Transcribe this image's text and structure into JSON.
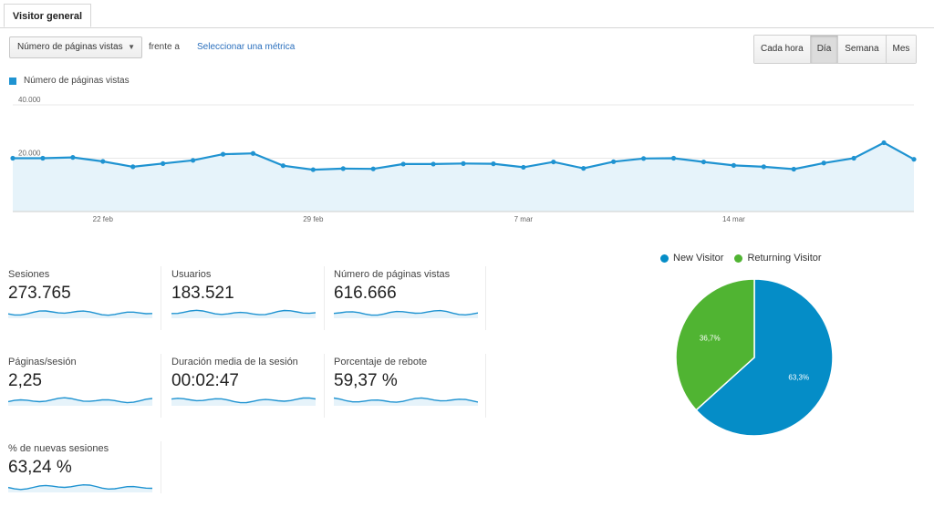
{
  "tabs": [
    {
      "label": "Visitor general",
      "active": true
    }
  ],
  "controls": {
    "metric_select": "Número de páginas vistas",
    "vs_label": "frente a",
    "compare_link": "Seleccionar una métrica",
    "periods": [
      "Cada hora",
      "Día",
      "Semana",
      "Mes"
    ],
    "active_period": "Día"
  },
  "chart_legend": "Número de páginas vistas",
  "chart_data": [
    {
      "type": "area",
      "title": "",
      "xlabel": "",
      "ylabel": "",
      "series": [
        {
          "name": "Número de páginas vistas",
          "color": "#1f93d1",
          "values": [
            20000,
            20000,
            20300,
            18800,
            16800,
            18000,
            19200,
            21500,
            21800,
            17200,
            15700,
            16100,
            16000,
            17800,
            17800,
            18000,
            17900,
            16600,
            18600,
            16200,
            18700,
            19900,
            20000,
            18600,
            17300,
            16800,
            15900,
            18200,
            20000,
            25800,
            19600
          ]
        }
      ],
      "y_ticks": [
        "40.000",
        "20.000"
      ],
      "ylim": [
        0,
        40000
      ],
      "x_ticks": [
        "22 feb",
        "29 feb",
        "7 mar",
        "14 mar"
      ],
      "grid": true
    },
    {
      "type": "pie",
      "labels": [
        "New Visitor",
        "Returning Visitor"
      ],
      "values": [
        63.3,
        36.7
      ],
      "slice_labels": [
        "63,3%",
        "36,7%"
      ],
      "colors": [
        "#058dc7",
        "#50b432"
      ],
      "legend": "top"
    }
  ],
  "metrics": [
    {
      "label": "Sesiones",
      "value": "273.765"
    },
    {
      "label": "Usuarios",
      "value": "183.521"
    },
    {
      "label": "Número de páginas vistas",
      "value": "616.666"
    },
    {
      "label": "Páginas/sesión",
      "value": "2,25"
    },
    {
      "label": "Duración media de la sesión",
      "value": "00:02:47"
    },
    {
      "label": "Porcentaje de rebote",
      "value": "59,37 %"
    },
    {
      "label": "% de nuevas sesiones",
      "value": "63,24 %"
    }
  ],
  "colors": {
    "accent": "#1f93d1",
    "fill": "#e6f3fa"
  }
}
